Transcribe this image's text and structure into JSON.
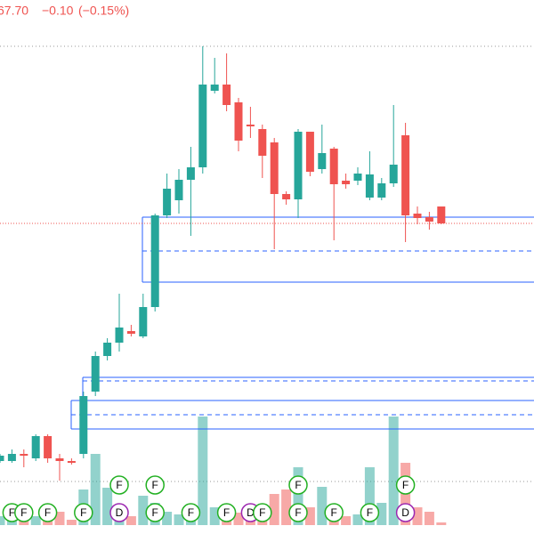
{
  "header": {
    "price": "67.70",
    "change": "−0.10",
    "change_pct": "(−0.15%)"
  },
  "chart_data": {
    "type": "candlestick",
    "up_color": "#26a69a",
    "down_color": "#ef5350",
    "ylim": [
      60.72,
      72.72
    ],
    "open": [
      62.36,
      62.36,
      62.52,
      62.42,
      62.92,
      62.42,
      62.36,
      62.52,
      63.92,
      64.72,
      65.02,
      65.28,
      65.16,
      65.82,
      67.88,
      68.22,
      68.68,
      68.96,
      70.68,
      70.82,
      70.42,
      69.92,
      69.82,
      69.52,
      68.36,
      68.24,
      69.76,
      68.92,
      69.38,
      68.66,
      68.66,
      68.28,
      68.28,
      68.6,
      69.68,
      67.92,
      67.84,
      68.08
    ],
    "high": [
      62.52,
      62.62,
      62.62,
      62.96,
      62.96,
      62.52,
      62.42,
      63.92,
      64.82,
      65.12,
      66.12,
      65.42,
      66.12,
      67.92,
      68.82,
      68.92,
      69.42,
      71.68,
      71.42,
      71.52,
      70.52,
      70.32,
      69.92,
      69.62,
      68.42,
      69.82,
      69.76,
      69.92,
      69.42,
      68.82,
      68.96,
      69.32,
      68.72,
      70.36,
      69.96,
      68.08,
      67.96,
      68.08
    ],
    "low": [
      62.32,
      62.32,
      62.22,
      62.36,
      62.32,
      61.92,
      62.28,
      62.42,
      63.82,
      64.62,
      64.82,
      65.16,
      65.12,
      65.72,
      67.82,
      67.92,
      67.42,
      68.82,
      70.62,
      70.22,
      69.32,
      69.62,
      68.72,
      67.12,
      68.12,
      67.82,
      68.76,
      68.82,
      67.32,
      68.48,
      68.56,
      68.22,
      68.22,
      68.52,
      67.28,
      67.68,
      67.56,
      67.68
    ],
    "close": [
      62.48,
      62.52,
      62.48,
      62.92,
      62.42,
      62.36,
      62.32,
      63.82,
      64.72,
      65.02,
      65.36,
      65.22,
      65.82,
      67.88,
      68.48,
      68.68,
      68.96,
      70.82,
      70.82,
      70.36,
      69.56,
      69.88,
      69.22,
      68.36,
      68.24,
      69.76,
      68.86,
      69.28,
      68.58,
      68.58,
      68.82,
      68.8,
      68.6,
      69.02,
      67.88,
      67.82,
      67.74,
      67.7
    ],
    "volume": [
      10,
      12,
      8,
      10,
      8,
      15,
      6,
      40,
      80,
      42,
      20,
      10,
      33,
      25,
      15,
      12,
      14,
      122,
      20,
      18,
      14,
      12,
      22,
      35,
      40,
      65,
      20,
      43,
      18,
      10,
      12,
      65,
      25,
      122,
      70,
      20,
      15,
      3
    ],
    "volume_ylim": [
      0,
      130
    ],
    "last_price_color": "#ef5350",
    "zones": [
      {
        "top": 67.84,
        "mid": 67.08,
        "bottom": 66.38,
        "color": "#2962ff"
      },
      {
        "top": 64.24,
        "mid": 64.16,
        "bottom": 63.72,
        "color": "#2962ff"
      },
      {
        "top": 63.72,
        "mid": 63.4,
        "bottom": 63.08,
        "color": "#2962ff"
      }
    ],
    "markers": [
      {
        "text": "F",
        "candle": 1,
        "row": 0
      },
      {
        "text": "F",
        "candle": 2,
        "row": 0
      },
      {
        "text": "F",
        "candle": 4,
        "row": 0
      },
      {
        "text": "F",
        "candle": 7,
        "row": 0
      },
      {
        "text": "D",
        "candle": 10,
        "row": 0
      },
      {
        "text": "F",
        "candle": 10,
        "row": 1
      },
      {
        "text": "F",
        "candle": 13,
        "row": 0
      },
      {
        "text": "F",
        "candle": 13,
        "row": 1
      },
      {
        "text": "F",
        "candle": 16,
        "row": 0
      },
      {
        "text": "F",
        "candle": 19,
        "row": 0
      },
      {
        "text": "D",
        "candle": 21,
        "row": 0
      },
      {
        "text": "F",
        "candle": 22,
        "row": 0
      },
      {
        "text": "F",
        "candle": 25,
        "row": 0
      },
      {
        "text": "F",
        "candle": 25,
        "row": 1
      },
      {
        "text": "F",
        "candle": 28,
        "row": 0
      },
      {
        "text": "F",
        "candle": 31,
        "row": 0
      },
      {
        "text": "D",
        "candle": 34,
        "row": 0
      },
      {
        "text": "F",
        "candle": 34,
        "row": 1
      }
    ]
  }
}
